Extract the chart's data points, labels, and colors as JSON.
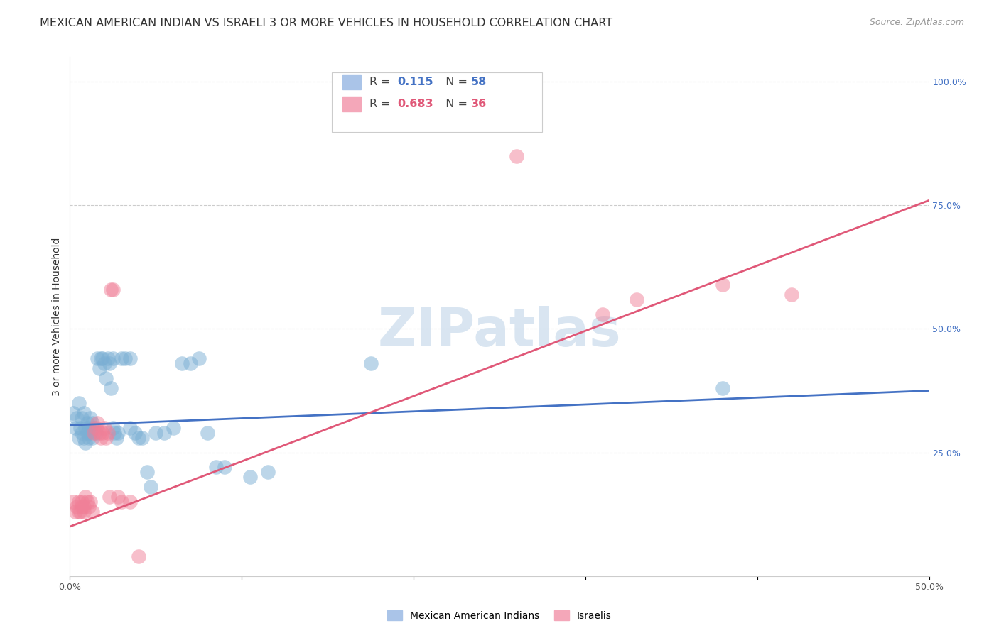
{
  "title": "MEXICAN AMERICAN INDIAN VS ISRAELI 3 OR MORE VEHICLES IN HOUSEHOLD CORRELATION CHART",
  "source": "Source: ZipAtlas.com",
  "ylabel": "3 or more Vehicles in Household",
  "xlim": [
    0.0,
    0.5
  ],
  "ylim": [
    0.0,
    1.05
  ],
  "xticks": [
    0.0,
    0.1,
    0.2,
    0.3,
    0.4,
    0.5
  ],
  "xticklabels": [
    "0.0%",
    "",
    "",
    "",
    "",
    "50.0%"
  ],
  "yticks_right": [
    0.0,
    0.25,
    0.5,
    0.75,
    1.0
  ],
  "yticklabels_right": [
    "",
    "25.0%",
    "50.0%",
    "75.0%",
    "100.0%"
  ],
  "watermark": "ZIPatlas",
  "blue_color": "#7bafd4",
  "pink_color": "#f08098",
  "blue_scatter": [
    [
      0.002,
      0.33
    ],
    [
      0.003,
      0.3
    ],
    [
      0.004,
      0.32
    ],
    [
      0.005,
      0.35
    ],
    [
      0.005,
      0.28
    ],
    [
      0.006,
      0.3
    ],
    [
      0.007,
      0.32
    ],
    [
      0.007,
      0.29
    ],
    [
      0.008,
      0.33
    ],
    [
      0.008,
      0.28
    ],
    [
      0.009,
      0.3
    ],
    [
      0.009,
      0.27
    ],
    [
      0.01,
      0.31
    ],
    [
      0.01,
      0.29
    ],
    [
      0.011,
      0.3
    ],
    [
      0.011,
      0.28
    ],
    [
      0.012,
      0.32
    ],
    [
      0.012,
      0.29
    ],
    [
      0.013,
      0.31
    ],
    [
      0.013,
      0.28
    ],
    [
      0.014,
      0.3
    ],
    [
      0.015,
      0.29
    ],
    [
      0.016,
      0.44
    ],
    [
      0.017,
      0.42
    ],
    [
      0.018,
      0.44
    ],
    [
      0.019,
      0.44
    ],
    [
      0.02,
      0.43
    ],
    [
      0.021,
      0.4
    ],
    [
      0.022,
      0.44
    ],
    [
      0.023,
      0.43
    ],
    [
      0.024,
      0.38
    ],
    [
      0.025,
      0.44
    ],
    [
      0.025,
      0.3
    ],
    [
      0.026,
      0.29
    ],
    [
      0.027,
      0.28
    ],
    [
      0.028,
      0.29
    ],
    [
      0.03,
      0.44
    ],
    [
      0.032,
      0.44
    ],
    [
      0.035,
      0.44
    ],
    [
      0.035,
      0.3
    ],
    [
      0.038,
      0.29
    ],
    [
      0.04,
      0.28
    ],
    [
      0.042,
      0.28
    ],
    [
      0.045,
      0.21
    ],
    [
      0.047,
      0.18
    ],
    [
      0.05,
      0.29
    ],
    [
      0.055,
      0.29
    ],
    [
      0.06,
      0.3
    ],
    [
      0.065,
      0.43
    ],
    [
      0.07,
      0.43
    ],
    [
      0.075,
      0.44
    ],
    [
      0.08,
      0.29
    ],
    [
      0.085,
      0.22
    ],
    [
      0.09,
      0.22
    ],
    [
      0.105,
      0.2
    ],
    [
      0.115,
      0.21
    ],
    [
      0.175,
      0.43
    ],
    [
      0.38,
      0.38
    ]
  ],
  "pink_scatter": [
    [
      0.002,
      0.15
    ],
    [
      0.003,
      0.13
    ],
    [
      0.004,
      0.14
    ],
    [
      0.005,
      0.15
    ],
    [
      0.005,
      0.13
    ],
    [
      0.006,
      0.13
    ],
    [
      0.007,
      0.14
    ],
    [
      0.007,
      0.15
    ],
    [
      0.008,
      0.13
    ],
    [
      0.008,
      0.14
    ],
    [
      0.009,
      0.16
    ],
    [
      0.01,
      0.15
    ],
    [
      0.011,
      0.14
    ],
    [
      0.012,
      0.15
    ],
    [
      0.013,
      0.13
    ],
    [
      0.014,
      0.29
    ],
    [
      0.015,
      0.3
    ],
    [
      0.016,
      0.31
    ],
    [
      0.017,
      0.29
    ],
    [
      0.018,
      0.28
    ],
    [
      0.019,
      0.29
    ],
    [
      0.02,
      0.3
    ],
    [
      0.021,
      0.28
    ],
    [
      0.022,
      0.29
    ],
    [
      0.023,
      0.16
    ],
    [
      0.024,
      0.58
    ],
    [
      0.025,
      0.58
    ],
    [
      0.028,
      0.16
    ],
    [
      0.03,
      0.15
    ],
    [
      0.035,
      0.15
    ],
    [
      0.04,
      0.04
    ],
    [
      0.26,
      0.85
    ],
    [
      0.31,
      0.53
    ],
    [
      0.33,
      0.56
    ],
    [
      0.38,
      0.59
    ],
    [
      0.42,
      0.57
    ]
  ],
  "blue_line_x": [
    0.0,
    0.5
  ],
  "blue_line_y": [
    0.305,
    0.375
  ],
  "pink_line_x": [
    0.0,
    0.5
  ],
  "pink_line_y": [
    0.1,
    0.76
  ],
  "blue_line_color": "#4472c4",
  "pink_line_color": "#e05878",
  "title_fontsize": 11.5,
  "source_fontsize": 9,
  "axis_fontsize": 9,
  "ylabel_fontsize": 10
}
